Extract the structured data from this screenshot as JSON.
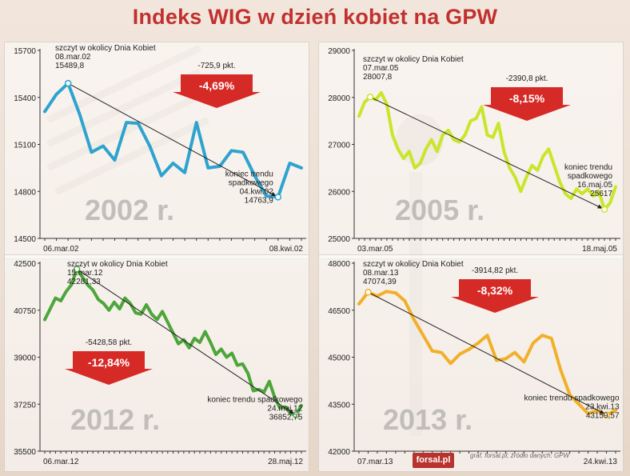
{
  "title": "Indeks WIG w dzień kobiet na GPW",
  "footer": {
    "logo": "forsal.pl",
    "credit": "graf. forsal.pl;  źródło danych: GPW"
  },
  "chart_data": [
    {
      "type": "line",
      "year_label": "2002 r.",
      "color": "#2ea3cf",
      "ylim": [
        14500,
        15700
      ],
      "yticks": [
        "15700",
        "15400",
        "15100",
        "14800",
        "14500"
      ],
      "xtick_start": "06.mar.02",
      "xtick_end": "08.kwi.02",
      "values": [
        15310,
        15420,
        15489.8,
        15290,
        15050,
        15090,
        15000,
        15240,
        15235,
        15090,
        14900,
        14980,
        14920,
        15240,
        14950,
        14960,
        15060,
        15050,
        14900,
        14770,
        14763.9,
        14980,
        14950
      ],
      "peak_index": 2,
      "trough_index": 20,
      "peak_text": [
        "szczyt w okolicy Dnia Kobiet",
        "08.mar.02",
        "15489,8"
      ],
      "trough_text": [
        "koniec trendu",
        "spadkowego",
        "04.kwi.02",
        "14763,9"
      ],
      "change_pts": "-725,9 pkt.",
      "change_pct": "-4,69%"
    },
    {
      "type": "line",
      "color": "#c8e62a",
      "year_label": "2005 r.",
      "ylim": [
        25000,
        29000
      ],
      "yticks": [
        "29000",
        "28000",
        "27000",
        "26000",
        "25000"
      ],
      "xtick_start": "03.mar.05",
      "xtick_end": "18.maj.05",
      "values": [
        27600,
        27900,
        28007.8,
        27950,
        28100,
        27850,
        27200,
        26900,
        26700,
        26850,
        26500,
        26600,
        26900,
        27100,
        26850,
        27200,
        27300,
        27100,
        27050,
        27200,
        27500,
        27550,
        27800,
        27200,
        27150,
        27450,
        26850,
        26500,
        26300,
        26000,
        26300,
        26550,
        26450,
        26750,
        26900,
        26550,
        26200,
        25950,
        25850,
        26050,
        25950,
        26050,
        25900,
        26000,
        25617,
        25750,
        26100
      ],
      "peak_index": 2,
      "trough_index": 44,
      "peak_text": [
        "szczyt w okolicy Dnia Kobiet",
        "07.mar.05",
        "28007,8"
      ],
      "trough_text": [
        "koniec trendu",
        "spadkowego",
        "16.maj.05",
        "25617"
      ],
      "change_pts": "-2390,8 pkt.",
      "change_pct": "-8,15%"
    },
    {
      "type": "line",
      "color": "#4ca63a",
      "year_label": "2012 r.",
      "ylim": [
        35500,
        42500
      ],
      "yticks": [
        "42500",
        "40750",
        "39000",
        "37250",
        "35500"
      ],
      "xtick_start": "06.mar.12",
      "xtick_end": "28.maj.12",
      "values": [
        40400,
        40800,
        41200,
        41100,
        41450,
        41700,
        42281.33,
        42000,
        41700,
        41500,
        41150,
        41000,
        40750,
        41050,
        40800,
        41200,
        41000,
        40650,
        40600,
        40950,
        40600,
        40400,
        40700,
        40300,
        39900,
        39500,
        39650,
        39350,
        39700,
        39550,
        39950,
        39550,
        39100,
        39300,
        39000,
        39150,
        38700,
        38750,
        38400,
        37750,
        37800,
        37700,
        38100,
        37500,
        37100,
        37150,
        36900,
        36852.75,
        37200
      ],
      "peak_index": 6,
      "trough_index": 47,
      "peak_text": [
        "szczyt w okolicy Dnia Kobiet",
        "15.mar.12",
        "42281,33"
      ],
      "trough_text": [
        "koniec trendu  spadkowego",
        "24.maj.12",
        "36852,75"
      ],
      "change_pts": "-5428,58 pkt.",
      "change_pct": "-12,84%"
    },
    {
      "type": "line",
      "color": "#f0b02a",
      "year_label": "2013 r.",
      "ylim": [
        42000,
        48000
      ],
      "yticks": [
        "48000",
        "46500",
        "45000",
        "43500",
        "42000"
      ],
      "xtick_start": "07.mar.13",
      "xtick_end": "24.kwi.13",
      "values": [
        46700,
        47074.39,
        46950,
        47100,
        47050,
        46800,
        46200,
        45700,
        45200,
        45150,
        44800,
        45100,
        45250,
        45450,
        45700,
        44900,
        44950,
        45150,
        44850,
        45450,
        45700,
        45600,
        44600,
        43800,
        43500,
        43200,
        43300,
        43159.57,
        43300
      ],
      "peak_index": 1,
      "trough_index": 27,
      "peak_text": [
        "szczyt w okolicy Dnia Kobiet",
        "08.mar.13",
        "47074,39"
      ],
      "trough_text": [
        "koniec trendu spadkowego",
        "23.kwi.13",
        "43159,57"
      ],
      "change_pts": "-3914,82 pkt.",
      "change_pct": "-8,32%"
    }
  ]
}
